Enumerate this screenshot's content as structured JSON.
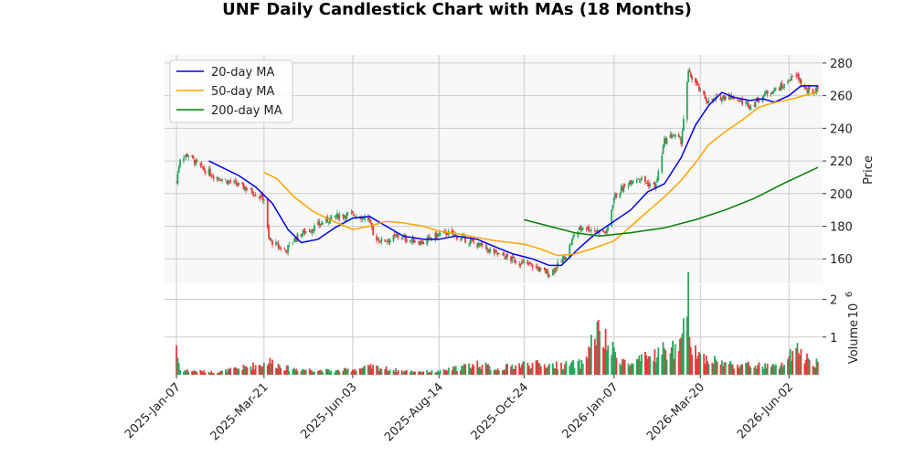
{
  "chart_data": {
    "type": "candlestick",
    "title": "UNF Daily Candlestick Chart with MAs (18 Months)",
    "price_panel": {
      "ylabel": "Price",
      "yticks": [
        160,
        180,
        200,
        220,
        240,
        260,
        280
      ],
      "ylim": [
        145,
        285
      ],
      "background": "#f8f8f8",
      "grid": true
    },
    "volume_panel": {
      "ylabel": "Volume",
      "exponent_label": "10",
      "exponent_power": "6",
      "yticks": [
        1,
        2
      ],
      "ylim": [
        0,
        2.4
      ]
    },
    "x_axis": {
      "range": [
        "2024-12-28",
        "2026-06-30"
      ],
      "tick_labels": [
        "2025-Jan-07",
        "2025-Mar-21",
        "2025-Jun-03",
        "2025-Aug-14",
        "2025-Oct-24",
        "2026-Jan-07",
        "2026-Mar-20",
        "2026-Jun-02"
      ],
      "tick_dates": [
        "2025-01-07",
        "2025-03-21",
        "2025-06-03",
        "2025-08-14",
        "2025-10-24",
        "2026-01-07",
        "2026-03-20",
        "2026-06-02"
      ]
    },
    "colors": {
      "up": "#26a65b",
      "down": "#e8393b",
      "ma20": "#0000ee",
      "ma50": "#ffa500",
      "ma200": "#008000",
      "grid": "#cccccc"
    },
    "legend": {
      "position": "top-left",
      "entries": [
        {
          "label": "20-day MA",
          "color": "#0000ee"
        },
        {
          "label": "50-day MA",
          "color": "#ffa500"
        },
        {
          "label": "200-day MA",
          "color": "#008000"
        }
      ]
    },
    "close_path": [
      [
        "2025-01-07",
        207
      ],
      [
        "2025-01-10",
        222
      ],
      [
        "2025-01-17",
        224
      ],
      [
        "2025-01-24",
        218
      ],
      [
        "2025-01-31",
        214
      ],
      [
        "2025-02-07",
        211
      ],
      [
        "2025-02-14",
        209
      ],
      [
        "2025-02-21",
        207
      ],
      [
        "2025-02-28",
        205
      ],
      [
        "2025-03-07",
        203
      ],
      [
        "2025-03-14",
        200
      ],
      [
        "2025-03-21",
        197
      ],
      [
        "2025-03-25",
        172
      ],
      [
        "2025-04-01",
        168
      ],
      [
        "2025-04-08",
        165
      ],
      [
        "2025-04-15",
        172
      ],
      [
        "2025-04-22",
        176
      ],
      [
        "2025-04-29",
        178
      ],
      [
        "2025-05-06",
        181
      ],
      [
        "2025-05-13",
        184
      ],
      [
        "2025-05-20",
        186
      ],
      [
        "2025-05-27",
        187
      ],
      [
        "2025-06-03",
        187
      ],
      [
        "2025-06-10",
        186
      ],
      [
        "2025-06-17",
        184
      ],
      [
        "2025-06-20",
        174
      ],
      [
        "2025-06-27",
        171
      ],
      [
        "2025-07-04",
        172
      ],
      [
        "2025-07-11",
        174
      ],
      [
        "2025-07-18",
        172
      ],
      [
        "2025-07-25",
        171
      ],
      [
        "2025-08-01",
        170
      ],
      [
        "2025-08-08",
        173
      ],
      [
        "2025-08-14",
        175
      ],
      [
        "2025-08-21",
        176
      ],
      [
        "2025-08-28",
        174
      ],
      [
        "2025-09-04",
        172
      ],
      [
        "2025-09-11",
        170
      ],
      [
        "2025-09-18",
        168
      ],
      [
        "2025-09-25",
        165
      ],
      [
        "2025-10-02",
        163
      ],
      [
        "2025-10-09",
        161
      ],
      [
        "2025-10-16",
        159
      ],
      [
        "2025-10-24",
        157
      ],
      [
        "2025-10-31",
        156
      ],
      [
        "2025-11-07",
        153
      ],
      [
        "2025-11-14",
        151
      ],
      [
        "2025-11-21",
        156
      ],
      [
        "2025-11-28",
        162
      ],
      [
        "2025-12-05",
        175
      ],
      [
        "2025-12-12",
        180
      ],
      [
        "2025-12-19",
        178
      ],
      [
        "2025-12-26",
        177
      ],
      [
        "2026-01-01",
        176
      ],
      [
        "2026-01-07",
        198
      ],
      [
        "2026-01-14",
        203
      ],
      [
        "2026-01-21",
        208
      ],
      [
        "2026-01-28",
        210
      ],
      [
        "2026-02-04",
        206
      ],
      [
        "2026-02-11",
        205
      ],
      [
        "2026-02-18",
        232
      ],
      [
        "2026-02-25",
        236
      ],
      [
        "2026-03-04",
        232
      ],
      [
        "2026-03-10",
        274
      ],
      [
        "2026-03-16",
        268
      ],
      [
        "2026-03-20",
        262
      ],
      [
        "2026-03-27",
        256
      ],
      [
        "2026-04-03",
        258
      ],
      [
        "2026-04-10",
        260
      ],
      [
        "2026-04-17",
        259
      ],
      [
        "2026-04-24",
        256
      ],
      [
        "2026-05-01",
        254
      ],
      [
        "2026-05-08",
        258
      ],
      [
        "2026-05-15",
        262
      ],
      [
        "2026-05-22",
        264
      ],
      [
        "2026-05-29",
        266
      ],
      [
        "2026-06-02",
        270
      ],
      [
        "2026-06-09",
        272
      ],
      [
        "2026-06-16",
        263
      ],
      [
        "2026-06-23",
        262
      ],
      [
        "2026-06-26",
        266
      ]
    ],
    "ma20": [
      [
        "2025-02-03",
        220
      ],
      [
        "2025-02-14",
        216
      ],
      [
        "2025-02-28",
        211
      ],
      [
        "2025-03-14",
        204
      ],
      [
        "2025-03-28",
        194
      ],
      [
        "2025-04-10",
        178
      ],
      [
        "2025-04-21",
        170
      ],
      [
        "2025-05-05",
        172
      ],
      [
        "2025-05-19",
        179
      ],
      [
        "2025-06-03",
        185
      ],
      [
        "2025-06-17",
        186
      ],
      [
        "2025-07-01",
        180
      ],
      [
        "2025-07-15",
        174
      ],
      [
        "2025-08-01",
        172
      ],
      [
        "2025-08-14",
        172
      ],
      [
        "2025-08-28",
        174
      ],
      [
        "2025-09-15",
        172
      ],
      [
        "2025-10-01",
        167
      ],
      [
        "2025-10-15",
        163
      ],
      [
        "2025-10-31",
        160
      ],
      [
        "2025-11-14",
        156
      ],
      [
        "2025-11-24",
        156
      ],
      [
        "2025-12-08",
        166
      ],
      [
        "2025-12-22",
        175
      ],
      [
        "2026-01-07",
        183
      ],
      [
        "2026-01-21",
        190
      ],
      [
        "2026-02-04",
        201
      ],
      [
        "2026-02-18",
        206
      ],
      [
        "2026-03-04",
        222
      ],
      [
        "2026-03-16",
        242
      ],
      [
        "2026-03-27",
        254
      ],
      [
        "2026-04-07",
        262
      ],
      [
        "2026-04-17",
        259
      ],
      [
        "2026-04-30",
        257
      ],
      [
        "2026-05-11",
        258
      ],
      [
        "2026-05-21",
        256
      ],
      [
        "2026-06-02",
        260
      ],
      [
        "2026-06-12",
        266
      ],
      [
        "2026-06-26",
        266
      ]
    ],
    "ma50": [
      [
        "2025-03-21",
        213
      ],
      [
        "2025-04-01",
        209
      ],
      [
        "2025-04-15",
        198
      ],
      [
        "2025-05-01",
        189
      ],
      [
        "2025-05-15",
        184
      ],
      [
        "2025-06-03",
        178
      ],
      [
        "2025-06-17",
        180
      ],
      [
        "2025-07-01",
        183
      ],
      [
        "2025-07-15",
        182
      ],
      [
        "2025-08-01",
        180
      ],
      [
        "2025-08-14",
        177
      ],
      [
        "2025-09-01",
        175
      ],
      [
        "2025-09-15",
        173
      ],
      [
        "2025-10-01",
        171
      ],
      [
        "2025-10-24",
        169
      ],
      [
        "2025-11-07",
        166
      ],
      [
        "2025-11-21",
        162
      ],
      [
        "2025-12-05",
        163
      ],
      [
        "2025-12-19",
        166
      ],
      [
        "2026-01-07",
        171
      ],
      [
        "2026-01-21",
        180
      ],
      [
        "2026-02-04",
        189
      ],
      [
        "2026-02-18",
        198
      ],
      [
        "2026-03-04",
        208
      ],
      [
        "2026-03-16",
        219
      ],
      [
        "2026-03-27",
        230
      ],
      [
        "2026-04-10",
        238
      ],
      [
        "2026-04-24",
        245
      ],
      [
        "2026-05-08",
        253
      ],
      [
        "2026-05-22",
        256
      ],
      [
        "2026-06-05",
        258
      ],
      [
        "2026-06-19",
        261
      ],
      [
        "2026-06-26",
        262
      ]
    ],
    "ma200": [
      [
        "2025-10-24",
        184
      ],
      [
        "2025-11-14",
        180
      ],
      [
        "2025-12-05",
        176
      ],
      [
        "2025-12-26",
        174
      ],
      [
        "2026-01-21",
        176
      ],
      [
        "2026-02-18",
        179
      ],
      [
        "2026-03-16",
        184
      ],
      [
        "2026-04-10",
        190
      ],
      [
        "2026-05-04",
        197
      ],
      [
        "2026-05-28",
        206
      ],
      [
        "2026-06-26",
        216
      ]
    ],
    "volume_path": [
      [
        "2025-01-07",
        1.0
      ],
      [
        "2025-01-08",
        0.6
      ],
      [
        "2025-01-10",
        0.15
      ],
      [
        "2025-02-10",
        0.08
      ],
      [
        "2025-03-21",
        0.35
      ],
      [
        "2025-03-24",
        0.45
      ],
      [
        "2025-04-10",
        0.2
      ],
      [
        "2025-05-20",
        0.12
      ],
      [
        "2025-06-20",
        0.25
      ],
      [
        "2025-07-15",
        0.12
      ],
      [
        "2025-08-14",
        0.1
      ],
      [
        "2025-09-15",
        0.35
      ],
      [
        "2025-10-01",
        0.18
      ],
      [
        "2025-10-24",
        0.35
      ],
      [
        "2025-11-20",
        0.3
      ],
      [
        "2025-12-12",
        0.35
      ],
      [
        "2025-12-23",
        1.38
      ],
      [
        "2026-01-07",
        0.7
      ],
      [
        "2026-01-20",
        0.3
      ],
      [
        "2026-02-18",
        0.78
      ],
      [
        "2026-03-04",
        0.85
      ],
      [
        "2026-03-10",
        2.38
      ],
      [
        "2026-03-13",
        1.0
      ],
      [
        "2026-03-20",
        0.6
      ],
      [
        "2026-04-10",
        0.35
      ],
      [
        "2026-05-01",
        0.3
      ],
      [
        "2026-05-25",
        0.25
      ],
      [
        "2026-06-08",
        0.75
      ],
      [
        "2026-06-20",
        0.45
      ],
      [
        "2026-06-26",
        0.4
      ]
    ]
  }
}
